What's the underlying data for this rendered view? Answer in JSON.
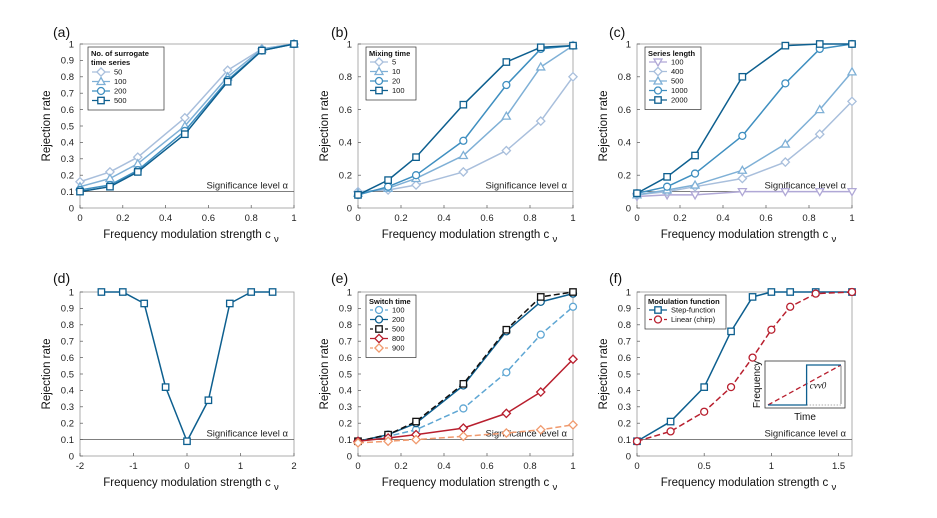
{
  "chart_data": [
    {
      "id": "a",
      "type": "line",
      "panel_label": "(a)",
      "xlabel": "Frequency modulation strength c",
      "xlabel_sub": "ν",
      "ylabel": "Rejection rate",
      "xlim": [
        0,
        1
      ],
      "ylim": [
        0,
        1
      ],
      "xticks": [
        0,
        0.2,
        0.4,
        0.6,
        0.8,
        1
      ],
      "xtick_labels": [
        "0",
        "0.2",
        "0.4",
        "0.6",
        "0.8",
        "1"
      ],
      "yticks": [
        0,
        0.1,
        0.2,
        0.3,
        0.4,
        0.5,
        0.6,
        0.7,
        0.8,
        0.9,
        1
      ],
      "ytick_labels": [
        "0",
        "0.1",
        "0.2",
        "0.3",
        "0.4",
        "0.5",
        "0.6",
        "0.7",
        "0.8",
        "0.9",
        "1"
      ],
      "significance": {
        "value": 0.1,
        "label": "Significance level α"
      },
      "legend": {
        "title": [
          "No. of surrogate",
          "time series"
        ],
        "position": "top-left"
      },
      "x": [
        0,
        0.14,
        0.27,
        0.49,
        0.69,
        0.85,
        1
      ],
      "series": [
        {
          "name": "50",
          "color": "#a9bfdc",
          "marker": "diamond",
          "dash": false,
          "values": [
            0.16,
            0.22,
            0.31,
            0.55,
            0.84,
            0.97,
            1.0
          ]
        },
        {
          "name": "100",
          "color": "#7fb0d6",
          "marker": "triangle",
          "dash": false,
          "values": [
            0.13,
            0.18,
            0.27,
            0.5,
            0.8,
            0.97,
            1.0
          ]
        },
        {
          "name": "200",
          "color": "#3f8fc0",
          "marker": "circle",
          "dash": false,
          "values": [
            0.11,
            0.14,
            0.23,
            0.47,
            0.78,
            0.96,
            1.0
          ]
        },
        {
          "name": "500",
          "color": "#0d5f8f",
          "marker": "square",
          "dash": false,
          "values": [
            0.1,
            0.13,
            0.22,
            0.45,
            0.77,
            0.96,
            1.0
          ]
        }
      ]
    },
    {
      "id": "b",
      "type": "line",
      "panel_label": "(b)",
      "xlabel": "Frequency modulation strength c",
      "xlabel_sub": "ν",
      "ylabel": "Rejection rate",
      "xlim": [
        0,
        1
      ],
      "ylim": [
        0,
        1
      ],
      "xticks": [
        0,
        0.2,
        0.4,
        0.6,
        0.8,
        1
      ],
      "xtick_labels": [
        "0",
        "0.2",
        "0.4",
        "0.6",
        "0.8",
        "1"
      ],
      "yticks": [
        0,
        0.2,
        0.4,
        0.6,
        0.8,
        1
      ],
      "ytick_labels": [
        "0",
        "0.2",
        "0.4",
        "0.6",
        "0.8",
        "1"
      ],
      "significance": {
        "value": 0.1,
        "label": "Significance level α"
      },
      "legend": {
        "title": [
          "Mixing time"
        ],
        "position": "top-left"
      },
      "x": [
        0,
        0.14,
        0.27,
        0.49,
        0.69,
        0.85,
        1
      ],
      "series": [
        {
          "name": "5",
          "color": "#a9bfdc",
          "marker": "diamond",
          "dash": false,
          "values": [
            0.1,
            0.11,
            0.14,
            0.22,
            0.35,
            0.53,
            0.8
          ]
        },
        {
          "name": "10",
          "color": "#7fb0d6",
          "marker": "triangle",
          "dash": false,
          "values": [
            0.09,
            0.12,
            0.18,
            0.32,
            0.56,
            0.86,
            0.99
          ]
        },
        {
          "name": "20",
          "color": "#3f8fc0",
          "marker": "circle",
          "dash": false,
          "values": [
            0.08,
            0.13,
            0.2,
            0.41,
            0.75,
            0.97,
            0.99
          ]
        },
        {
          "name": "100",
          "color": "#0d5f8f",
          "marker": "square",
          "dash": false,
          "values": [
            0.08,
            0.17,
            0.31,
            0.63,
            0.89,
            0.98,
            0.99
          ]
        }
      ]
    },
    {
      "id": "c",
      "type": "line",
      "panel_label": "(c)",
      "xlabel": "Frequency modulation strength c",
      "xlabel_sub": "ν",
      "ylabel": "Rejection rate",
      "xlim": [
        0,
        1
      ],
      "ylim": [
        0,
        1
      ],
      "xticks": [
        0,
        0.2,
        0.4,
        0.6,
        0.8,
        1
      ],
      "xtick_labels": [
        "0",
        "0.2",
        "0.4",
        "0.6",
        "0.8",
        "1"
      ],
      "yticks": [
        0,
        0.2,
        0.4,
        0.6,
        0.8,
        1
      ],
      "ytick_labels": [
        "0",
        "0.2",
        "0.4",
        "0.6",
        "0.8",
        "1"
      ],
      "significance": {
        "value": 0.1,
        "label": "Significance level α"
      },
      "legend": {
        "title": [
          "Series length"
        ],
        "position": "top-left"
      },
      "x": [
        0,
        0.14,
        0.27,
        0.49,
        0.69,
        0.85,
        1
      ],
      "series": [
        {
          "name": "100",
          "color": "#b0a8d6",
          "marker": "triangle-down",
          "dash": false,
          "values": [
            0.07,
            0.08,
            0.08,
            0.1,
            0.1,
            0.1,
            0.1
          ]
        },
        {
          "name": "400",
          "color": "#a9bfdc",
          "marker": "diamond",
          "dash": false,
          "values": [
            0.08,
            0.1,
            0.13,
            0.18,
            0.28,
            0.45,
            0.65
          ]
        },
        {
          "name": "500",
          "color": "#7fb0d6",
          "marker": "triangle",
          "dash": false,
          "values": [
            0.08,
            0.11,
            0.14,
            0.23,
            0.39,
            0.6,
            0.83
          ]
        },
        {
          "name": "1000",
          "color": "#3f8fc0",
          "marker": "circle",
          "dash": false,
          "values": [
            0.09,
            0.13,
            0.21,
            0.44,
            0.76,
            0.97,
            1.0
          ]
        },
        {
          "name": "2000",
          "color": "#0d5f8f",
          "marker": "square",
          "dash": false,
          "values": [
            0.09,
            0.19,
            0.32,
            0.8,
            0.99,
            1.0,
            1.0
          ]
        }
      ]
    },
    {
      "id": "d",
      "type": "line",
      "panel_label": "(d)",
      "xlabel": "Frequency modulation strength c",
      "xlabel_sub": "ν",
      "ylabel": "Rejection rate",
      "xlim": [
        -2,
        2
      ],
      "ylim": [
        0,
        1
      ],
      "xticks": [
        -2,
        -1,
        0,
        1,
        2
      ],
      "xtick_labels": [
        "-2",
        "-1",
        "0",
        "1",
        "2"
      ],
      "yticks": [
        0,
        0.1,
        0.2,
        0.3,
        0.4,
        0.5,
        0.6,
        0.7,
        0.8,
        0.9,
        1
      ],
      "ytick_labels": [
        "0",
        "0.1",
        "0.2",
        "0.3",
        "0.4",
        "0.5",
        "0.6",
        "0.7",
        "0.8",
        "0.9",
        "1"
      ],
      "significance": {
        "value": 0.1,
        "label": "Significance level α"
      },
      "legend": null,
      "x": [
        -1.6,
        -1.2,
        -0.8,
        -0.4,
        0,
        0.4,
        0.8,
        1.2,
        1.6
      ],
      "series": [
        {
          "name": "",
          "color": "#0d5f8f",
          "marker": "square",
          "dash": false,
          "values": [
            1.0,
            1.0,
            0.93,
            0.42,
            0.09,
            0.34,
            0.93,
            1.0,
            1.0
          ]
        }
      ]
    },
    {
      "id": "e",
      "type": "line",
      "panel_label": "(e)",
      "xlabel": "Frequency modulation strength c",
      "xlabel_sub": "ν",
      "ylabel": "Rejection rate",
      "xlim": [
        0,
        1
      ],
      "ylim": [
        0,
        1
      ],
      "xticks": [
        0,
        0.2,
        0.4,
        0.6,
        0.8,
        1
      ],
      "xtick_labels": [
        "0",
        "0.2",
        "0.4",
        "0.6",
        "0.8",
        "1"
      ],
      "yticks": [
        0,
        0.1,
        0.2,
        0.3,
        0.4,
        0.5,
        0.6,
        0.7,
        0.8,
        0.9,
        1
      ],
      "ytick_labels": [
        "0",
        "0.1",
        "0.2",
        "0.3",
        "0.4",
        "0.5",
        "0.6",
        "0.7",
        "0.8",
        "0.9",
        "1"
      ],
      "significance": {
        "value": 0.1,
        "label": "Significance level α"
      },
      "legend": {
        "title": [
          "Switch time"
        ],
        "position": "top-left"
      },
      "x": [
        0,
        0.14,
        0.27,
        0.49,
        0.69,
        0.85,
        1
      ],
      "series": [
        {
          "name": "100",
          "color": "#5ea6d3",
          "marker": "circle",
          "dash": true,
          "values": [
            0.09,
            0.12,
            0.16,
            0.29,
            0.51,
            0.74,
            0.91
          ]
        },
        {
          "name": "200",
          "color": "#0d5f8f",
          "marker": "circle",
          "dash": false,
          "values": [
            0.09,
            0.13,
            0.2,
            0.43,
            0.76,
            0.94,
            0.99
          ]
        },
        {
          "name": "500",
          "color": "#111111",
          "marker": "square",
          "dash": true,
          "values": [
            0.09,
            0.13,
            0.21,
            0.44,
            0.77,
            0.97,
            1.0
          ]
        },
        {
          "name": "800",
          "color": "#b81f2e",
          "marker": "diamond",
          "dash": false,
          "values": [
            0.09,
            0.11,
            0.13,
            0.17,
            0.26,
            0.39,
            0.59
          ]
        },
        {
          "name": "900",
          "color": "#f09a6e",
          "marker": "diamond",
          "dash": true,
          "values": [
            0.08,
            0.09,
            0.1,
            0.12,
            0.14,
            0.16,
            0.19
          ]
        }
      ]
    },
    {
      "id": "f",
      "type": "line",
      "panel_label": "(f)",
      "xlabel": "Frequency modulation strength c",
      "xlabel_sub": "ν",
      "ylabel": "Rejection rate",
      "xlim": [
        0,
        1.6
      ],
      "ylim": [
        0,
        1
      ],
      "xticks": [
        0,
        0.5,
        1,
        1.5
      ],
      "xtick_labels": [
        "0",
        "0.5",
        "1",
        "1.5"
      ],
      "yticks": [
        0,
        0.1,
        0.2,
        0.3,
        0.4,
        0.5,
        0.6,
        0.7,
        0.8,
        0.9,
        1
      ],
      "ytick_labels": [
        "0",
        "0.1",
        "0.2",
        "0.3",
        "0.4",
        "0.5",
        "0.6",
        "0.7",
        "0.8",
        "0.9",
        "1"
      ],
      "significance": {
        "value": 0.1,
        "label": "Significance level α"
      },
      "legend": {
        "title": [
          "Modulation function"
        ],
        "position": "top-left"
      },
      "inset": {
        "xlabel": "Time",
        "ylabel": "Frequency",
        "annotation": "cνν0"
      },
      "x": [
        0,
        0.25,
        0.5,
        0.7,
        0.86,
        1.0,
        1.14,
        1.33,
        1.6
      ],
      "series": [
        {
          "name": "Step-function",
          "color": "#0d5f8f",
          "marker": "square",
          "dash": false,
          "values": [
            0.09,
            0.21,
            0.42,
            0.76,
            0.97,
            1.0,
            1.0,
            1.0,
            1.0
          ]
        },
        {
          "name": "Linear (chirp)",
          "color": "#b81f2e",
          "marker": "circle",
          "dash": true,
          "values": [
            0.09,
            0.15,
            0.27,
            0.42,
            0.6,
            0.77,
            0.91,
            0.99,
            1.0
          ]
        }
      ]
    }
  ]
}
